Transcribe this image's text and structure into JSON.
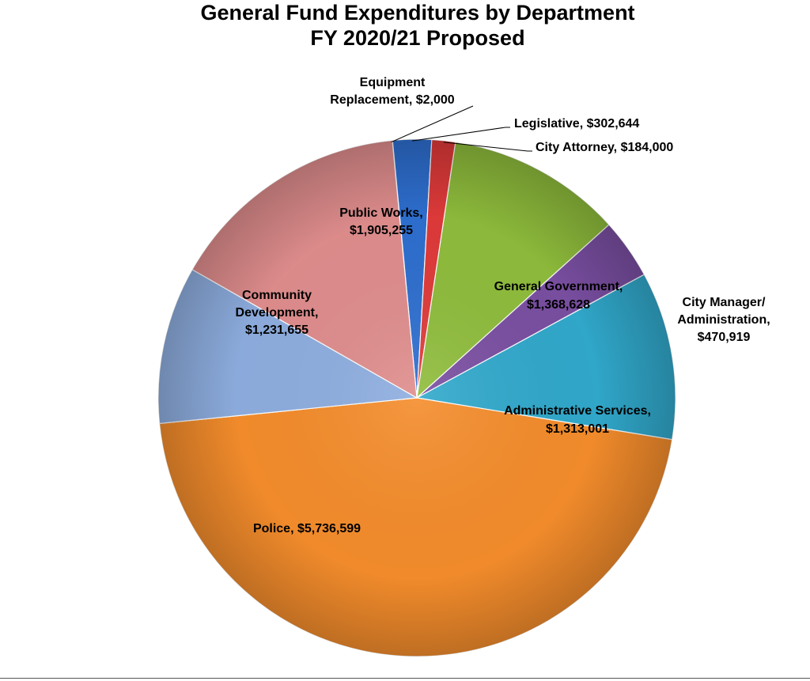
{
  "chart_data": {
    "type": "pie",
    "title_lines": [
      "General Fund Expenditures by Department",
      "FY 2020/21 Proposed"
    ],
    "slices": [
      {
        "key": "equipment",
        "name": "Equipment Replacement",
        "label_lines": [
          "Equipment",
          "Replacement,  $2,000"
        ],
        "value": 2000,
        "color": "#4472c4"
      },
      {
        "key": "legislative",
        "name": "Legislative",
        "label_lines": [
          "Legislative,  $302,644"
        ],
        "value": 302644,
        "color": "#2e6fd0"
      },
      {
        "key": "city_attorney",
        "name": "City Attorney",
        "label_lines": [
          "City Attorney,  $184,000"
        ],
        "value": 184000,
        "color": "#e03a3a"
      },
      {
        "key": "general_gov",
        "name": "General Government",
        "label_lines": [
          "General Government,",
          "$1,368,628"
        ],
        "value": 1368628,
        "color": "#8fbd3c"
      },
      {
        "key": "city_manager",
        "name": "City Manager/ Administration",
        "label_lines": [
          "City Manager/",
          "Administration,",
          "$470,919"
        ],
        "value": 470919,
        "color": "#7a4fa2"
      },
      {
        "key": "admin_services",
        "name": "Administrative Services",
        "label_lines": [
          "Administrative Services,",
          "$1,313,001"
        ],
        "value": 1313001,
        "color": "#31a9cc"
      },
      {
        "key": "police",
        "name": "Police",
        "label_lines": [
          "Police,  $5,736,599"
        ],
        "value": 5736599,
        "color": "#f58d2c"
      },
      {
        "key": "community_dev",
        "name": "Community Development",
        "label_lines": [
          "Community",
          "Development,",
          "$1,231,655"
        ],
        "value": 1231655,
        "color": "#8eaee0"
      },
      {
        "key": "public_works",
        "name": "Public Works",
        "label_lines": [
          "Public Works,",
          "$1,905,255"
        ],
        "value": 1905255,
        "color": "#e08d8d"
      }
    ]
  }
}
